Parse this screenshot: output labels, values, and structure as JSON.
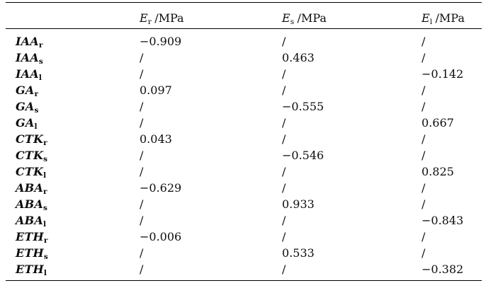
{
  "page": {
    "background_color": "#ffffff",
    "text_color": "#0d0d0d",
    "rule_color": "#000000"
  },
  "table": {
    "header": {
      "corner_label": "",
      "columns": [
        {
          "symbol": "E",
          "subscript": "r",
          "unit": "/MPa"
        },
        {
          "symbol": "E",
          "subscript": "s",
          "unit": "/MPa"
        },
        {
          "symbol": "E",
          "subscript": "l",
          "unit": "/MPa"
        }
      ]
    },
    "rows": [
      {
        "label": "IAA",
        "subscript": "r",
        "values": [
          "−0.909",
          "/",
          "/"
        ]
      },
      {
        "label": "IAA",
        "subscript": "s",
        "values": [
          "/",
          "0.463",
          "/"
        ]
      },
      {
        "label": "IAA",
        "subscript": "l",
        "values": [
          "/",
          "/",
          "−0.142"
        ]
      },
      {
        "label": "GA",
        "subscript": "r",
        "values": [
          "0.097",
          "/",
          "/"
        ]
      },
      {
        "label": "GA",
        "subscript": "s",
        "values": [
          "/",
          "−0.555",
          "/"
        ]
      },
      {
        "label": "GA",
        "subscript": "l",
        "values": [
          "/",
          "/",
          "0.667"
        ]
      },
      {
        "label": "CTK",
        "subscript": "r",
        "values": [
          "0.043",
          "/",
          "/"
        ]
      },
      {
        "label": "CTK",
        "subscript": "s",
        "values": [
          "/",
          "−0.546",
          "/"
        ]
      },
      {
        "label": "CTK",
        "subscript": "l",
        "values": [
          "/",
          "/",
          "0.825"
        ]
      },
      {
        "label": "ABA",
        "subscript": "r",
        "values": [
          "−0.629",
          "/",
          "/"
        ]
      },
      {
        "label": "ABA",
        "subscript": "s",
        "values": [
          "/",
          "0.933",
          "/"
        ]
      },
      {
        "label": "ABA",
        "subscript": "l",
        "values": [
          "/",
          "/",
          "−0.843"
        ]
      },
      {
        "label": "ETH",
        "subscript": "r",
        "values": [
          "−0.006",
          "/",
          "/"
        ]
      },
      {
        "label": "ETH",
        "subscript": "s",
        "values": [
          "/",
          "0.533",
          "/"
        ]
      },
      {
        "label": "ETH",
        "subscript": "l",
        "values": [
          "/",
          "/",
          "−0.382"
        ]
      }
    ]
  },
  "chart_data": {
    "type": "table",
    "title": "",
    "column_headers": [
      "",
      "E_r /MPa",
      "E_s /MPa",
      "E_l /MPa"
    ],
    "row_labels": [
      "IAA_r",
      "IAA_s",
      "IAA_l",
      "GA_r",
      "GA_s",
      "GA_l",
      "CTK_r",
      "CTK_s",
      "CTK_l",
      "ABA_r",
      "ABA_s",
      "ABA_l",
      "ETH_r",
      "ETH_s",
      "ETH_l"
    ],
    "cells": [
      [
        "−0.909",
        "/",
        "/"
      ],
      [
        "/",
        "0.463",
        "/"
      ],
      [
        "/",
        "/",
        "−0.142"
      ],
      [
        "0.097",
        "/",
        "/"
      ],
      [
        "/",
        "−0.555",
        "/"
      ],
      [
        "/",
        "/",
        "0.667"
      ],
      [
        "0.043",
        "/",
        "/"
      ],
      [
        "/",
        "−0.546",
        "/"
      ],
      [
        "/",
        "/",
        "0.825"
      ],
      [
        "−0.629",
        "/",
        "/"
      ],
      [
        "/",
        "0.933",
        "/"
      ],
      [
        "/",
        "/",
        "−0.843"
      ],
      [
        "−0.006",
        "/",
        "/"
      ],
      [
        "/",
        "0.533",
        "/"
      ],
      [
        "/",
        "/",
        "−0.382"
      ]
    ]
  }
}
